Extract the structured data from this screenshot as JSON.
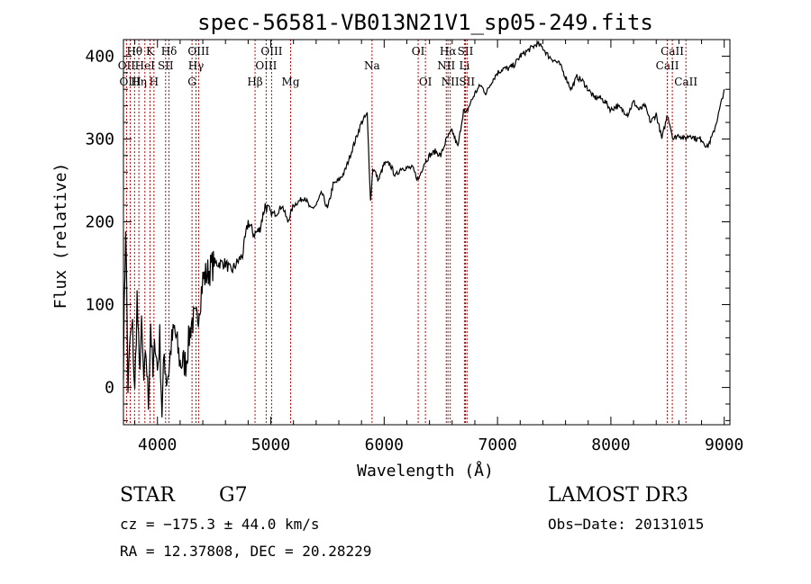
{
  "chart_data": {
    "type": "line",
    "title": "spec-56581-VB013N21V1_sp05-249.fits",
    "xlabel": "Wavelength (Å)",
    "ylabel": "Flux (relative)",
    "xlim": [
      3700,
      9050
    ],
    "ylim": [
      -45,
      420
    ],
    "x_ticks": [
      4000,
      5000,
      6000,
      7000,
      8000,
      9000
    ],
    "y_ticks": [
      0,
      100,
      200,
      300,
      400
    ],
    "grid": false,
    "series": [
      {
        "name": "flux",
        "x": [
          3700,
          3720,
          3740,
          3760,
          3780,
          3800,
          3820,
          3840,
          3860,
          3880,
          3900,
          3920,
          3940,
          3960,
          3980,
          4000,
          4020,
          4040,
          4060,
          4080,
          4100,
          4120,
          4150,
          4200,
          4250,
          4300,
          4350,
          4400,
          4450,
          4500,
          4550,
          4600,
          4650,
          4700,
          4750,
          4800,
          4850,
          4900,
          4950,
          5000,
          5050,
          5100,
          5150,
          5200,
          5250,
          5300,
          5350,
          5400,
          5450,
          5500,
          5550,
          5600,
          5650,
          5700,
          5750,
          5800,
          5850,
          5880,
          5900,
          5920,
          5950,
          6000,
          6050,
          6100,
          6150,
          6200,
          6250,
          6300,
          6350,
          6400,
          6450,
          6500,
          6550,
          6600,
          6650,
          6700,
          6720,
          6750,
          6800,
          6850,
          6900,
          6950,
          7000,
          7050,
          7100,
          7150,
          7200,
          7250,
          7300,
          7350,
          7400,
          7450,
          7500,
          7550,
          7600,
          7650,
          7700,
          7750,
          7800,
          7850,
          7900,
          7950,
          8000,
          8050,
          8100,
          8150,
          8200,
          8250,
          8300,
          8350,
          8400,
          8450,
          8500,
          8550,
          8600,
          8650,
          8700,
          8750,
          8800,
          8850,
          8900,
          8950,
          9000
        ],
        "values": [
          30,
          200,
          0,
          60,
          70,
          -10,
          110,
          20,
          70,
          5,
          40,
          -20,
          80,
          10,
          60,
          20,
          60,
          -30,
          40,
          10,
          20,
          50,
          70,
          30,
          30,
          80,
          80,
          130,
          140,
          150,
          150,
          150,
          140,
          150,
          160,
          200,
          185,
          190,
          220,
          210,
          210,
          220,
          200,
          220,
          225,
          230,
          215,
          220,
          235,
          215,
          245,
          250,
          260,
          280,
          300,
          320,
          330,
          225,
          265,
          260,
          250,
          270,
          270,
          255,
          265,
          265,
          265,
          250,
          270,
          280,
          285,
          280,
          300,
          310,
          290,
          335,
          330,
          340,
          355,
          365,
          355,
          370,
          380,
          385,
          385,
          390,
          400,
          405,
          410,
          415,
          410,
          400,
          395,
          390,
          375,
          360,
          375,
          370,
          360,
          350,
          350,
          345,
          335,
          340,
          335,
          330,
          345,
          335,
          340,
          320,
          330,
          300,
          330,
          300,
          305,
          300,
          305,
          300,
          300,
          290,
          305,
          330,
          360
        ]
      }
    ],
    "spectral_lines": [
      {
        "label": "Hθ",
        "x": 3798,
        "row": 1
      },
      {
        "label": "OII",
        "x": 3727,
        "row": 2
      },
      {
        "label": "OIII",
        "x": 3760,
        "row": 3
      },
      {
        "label": "Hη",
        "x": 3836,
        "row": 3
      },
      {
        "label": "K",
        "x": 3934,
        "row": 1
      },
      {
        "label": "HeI",
        "x": 3889,
        "row": 2
      },
      {
        "label": "SII",
        "x": 4072,
        "row": 2
      },
      {
        "label": "H",
        "x": 3969,
        "row": 3
      },
      {
        "label": "Hδ",
        "x": 4102,
        "row": 1
      },
      {
        "label": "OIII",
        "x": 4363,
        "row": 1
      },
      {
        "label": "Hγ",
        "x": 4340,
        "row": 2
      },
      {
        "label": "G",
        "x": 4305,
        "row": 3
      },
      {
        "label": "Hβ",
        "x": 4861,
        "row": 3
      },
      {
        "label": "OIII",
        "x": 5007,
        "row": 1
      },
      {
        "label": "OIII",
        "x": 4959,
        "row": 2
      },
      {
        "label": "Mg",
        "x": 5175,
        "row": 3
      },
      {
        "label": "Na",
        "x": 5893,
        "row": 2
      },
      {
        "label": "OI",
        "x": 6300,
        "row": 1
      },
      {
        "label": "OI",
        "x": 6364,
        "row": 3
      },
      {
        "label": "Hα",
        "x": 6563,
        "row": 1
      },
      {
        "label": "SII",
        "x": 6717,
        "row": 1
      },
      {
        "label": "NII",
        "x": 6548,
        "row": 2
      },
      {
        "label": "Li",
        "x": 6708,
        "row": 2
      },
      {
        "label": "NII",
        "x": 6583,
        "row": 3
      },
      {
        "label": "SII",
        "x": 6731,
        "row": 3
      },
      {
        "label": "CaII",
        "x": 8542,
        "row": 1
      },
      {
        "label": "CaII",
        "x": 8498,
        "row": 2
      },
      {
        "label": "CaII",
        "x": 8662,
        "row": 3
      }
    ],
    "line_color": "#000000",
    "marker_color": "#cc0000"
  },
  "info": {
    "object_class": "STAR",
    "subclass": "G7",
    "survey": "LAMOST DR3",
    "velocity": "cz = −175.3 ± 44.0 km/s",
    "obs_date": "Obs−Date: 20131015",
    "coords": "RA =  12.37808, DEC =  20.28229"
  }
}
